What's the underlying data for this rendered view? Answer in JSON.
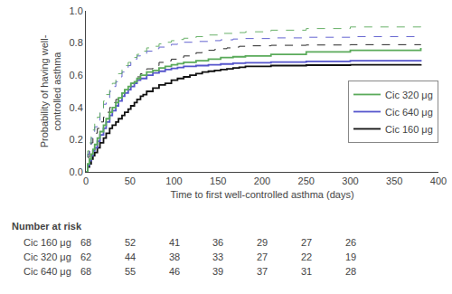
{
  "chart_data": {
    "type": "step",
    "xlabel": "Time to first well-controlled asthma (days)",
    "ylabel": "Probability of having well-\ncontrolled asthma",
    "xlim": [
      0,
      400
    ],
    "ylim": [
      0,
      1.0
    ],
    "xticks": [
      0,
      50,
      100,
      150,
      200,
      250,
      300,
      350,
      400
    ],
    "yticks": [
      {
        "value": 0,
        "label": "0.0"
      },
      {
        "value": 0.2,
        "label": "0.2"
      },
      {
        "value": 0.4,
        "label": "0.4"
      },
      {
        "value": 0.6,
        "label": "0.6"
      },
      {
        "value": 0.8,
        "label": "0.8"
      },
      {
        "value": 1.0,
        "label": "1.0"
      }
    ],
    "grid": false,
    "legend": "lower right",
    "series": [
      {
        "name": "Cic 160 μg",
        "color": "#111111",
        "line_style": "solid",
        "x": [
          0,
          2,
          4,
          6,
          8,
          10,
          13,
          16,
          20,
          23,
          27,
          30,
          34,
          37,
          41,
          44,
          48,
          51,
          55,
          58,
          62,
          65,
          69,
          76,
          83,
          90,
          97,
          104,
          111,
          118,
          125,
          132,
          139,
          146,
          153,
          160,
          167,
          174,
          181,
          210,
          250,
          300,
          380
        ],
        "values": [
          0,
          0.03,
          0.05,
          0.08,
          0.1,
          0.12,
          0.15,
          0.18,
          0.21,
          0.24,
          0.27,
          0.29,
          0.31,
          0.33,
          0.35,
          0.37,
          0.39,
          0.41,
          0.43,
          0.45,
          0.47,
          0.48,
          0.5,
          0.52,
          0.54,
          0.55,
          0.57,
          0.58,
          0.59,
          0.6,
          0.61,
          0.62,
          0.625,
          0.63,
          0.635,
          0.64,
          0.645,
          0.65,
          0.655,
          0.66,
          0.663,
          0.665,
          0.668
        ],
        "upper": [
          0,
          0.09,
          0.14,
          0.18,
          0.21,
          0.24,
          0.27,
          0.31,
          0.34,
          0.37,
          0.4,
          0.43,
          0.45,
          0.47,
          0.49,
          0.51,
          0.53,
          0.55,
          0.57,
          0.59,
          0.61,
          0.62,
          0.64,
          0.66,
          0.68,
          0.69,
          0.7,
          0.71,
          0.72,
          0.73,
          0.74,
          0.75,
          0.755,
          0.76,
          0.765,
          0.77,
          0.775,
          0.78,
          0.783,
          0.786,
          0.788,
          0.79,
          0.792
        ]
      },
      {
        "name": "Cic 640 μg",
        "color": "#5555cc",
        "line_style": "solid",
        "x": [
          0,
          2,
          4,
          6,
          8,
          10,
          13,
          16,
          20,
          23,
          27,
          30,
          34,
          37,
          41,
          44,
          48,
          51,
          55,
          58,
          62,
          69,
          76,
          83,
          90,
          97,
          104,
          111,
          125,
          139,
          153,
          167,
          181,
          210,
          250,
          300,
          380
        ],
        "values": [
          0,
          0.04,
          0.07,
          0.1,
          0.13,
          0.15,
          0.19,
          0.23,
          0.27,
          0.31,
          0.35,
          0.38,
          0.41,
          0.44,
          0.47,
          0.49,
          0.51,
          0.53,
          0.55,
          0.57,
          0.58,
          0.6,
          0.615,
          0.625,
          0.635,
          0.642,
          0.648,
          0.655,
          0.66,
          0.665,
          0.67,
          0.675,
          0.678,
          0.682,
          0.686,
          0.69,
          0.695
        ],
        "upper": [
          0,
          0.11,
          0.17,
          0.21,
          0.25,
          0.28,
          0.32,
          0.37,
          0.42,
          0.46,
          0.5,
          0.53,
          0.56,
          0.59,
          0.62,
          0.64,
          0.66,
          0.68,
          0.7,
          0.72,
          0.73,
          0.75,
          0.765,
          0.775,
          0.785,
          0.792,
          0.798,
          0.805,
          0.81,
          0.815,
          0.82,
          0.825,
          0.828,
          0.832,
          0.836,
          0.84,
          0.845
        ]
      },
      {
        "name": "Cic 320 μg",
        "color": "#5aaa5a",
        "line_style": "solid",
        "x": [
          0,
          2,
          4,
          6,
          8,
          10,
          13,
          16,
          20,
          23,
          27,
          30,
          34,
          37,
          41,
          44,
          48,
          51,
          55,
          58,
          62,
          69,
          76,
          83,
          90,
          97,
          104,
          111,
          125,
          139,
          153,
          167,
          181,
          210,
          250,
          300,
          380
        ],
        "values": [
          0,
          0.05,
          0.08,
          0.11,
          0.14,
          0.17,
          0.21,
          0.25,
          0.29,
          0.33,
          0.37,
          0.4,
          0.43,
          0.46,
          0.49,
          0.51,
          0.53,
          0.55,
          0.56,
          0.58,
          0.6,
          0.62,
          0.63,
          0.645,
          0.655,
          0.665,
          0.672,
          0.68,
          0.69,
          0.7,
          0.71,
          0.715,
          0.72,
          0.73,
          0.745,
          0.755,
          0.77
        ],
        "upper": [
          0,
          0.13,
          0.18,
          0.22,
          0.26,
          0.3,
          0.34,
          0.39,
          0.44,
          0.48,
          0.52,
          0.55,
          0.58,
          0.61,
          0.64,
          0.66,
          0.68,
          0.7,
          0.71,
          0.73,
          0.75,
          0.77,
          0.78,
          0.795,
          0.805,
          0.815,
          0.822,
          0.83,
          0.84,
          0.85,
          0.86,
          0.865,
          0.87,
          0.88,
          0.89,
          0.9,
          0.91
        ]
      }
    ],
    "number_at_risk": {
      "header": "Number at risk",
      "times": [
        0,
        50,
        100,
        150,
        200,
        250,
        300
      ],
      "rows": [
        {
          "label": "Cic 160 μg",
          "values": [
            68,
            52,
            41,
            36,
            29,
            27,
            26
          ]
        },
        {
          "label": "Cic 320 μg",
          "values": [
            62,
            44,
            38,
            33,
            27,
            22,
            19
          ]
        },
        {
          "label": "Cic 640 μg",
          "values": [
            68,
            55,
            46,
            39,
            37,
            31,
            28
          ]
        }
      ]
    }
  }
}
